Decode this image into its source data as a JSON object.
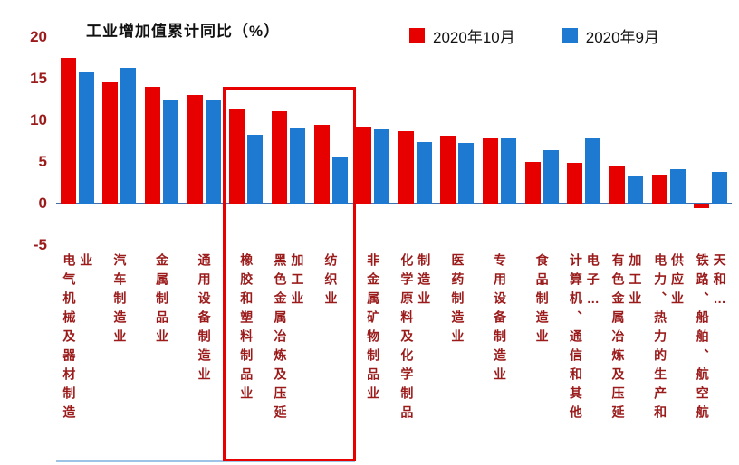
{
  "title": "工业增加值累计同比（%）",
  "legend": {
    "items": [
      {
        "label": "2020年10月",
        "color": "#e60000"
      },
      {
        "label": "2020年9月",
        "color": "#1e7ad0"
      }
    ]
  },
  "axis": {
    "tick_label_color": "#9b1b1b",
    "zero_line_color": "#3f6fae"
  },
  "chart_data": {
    "type": "bar",
    "title": "工业增加值累计同比（%）",
    "xlabel": "",
    "ylabel": "",
    "ylim": [
      -5,
      20
    ],
    "yticks": [
      20,
      15,
      10,
      5,
      0,
      -5
    ],
    "grid": false,
    "legend_position": "top-right",
    "categories": [
      "电气机械及器材制造业",
      "汽车制造业",
      "金属制品业",
      "通用设备制造业",
      "橡胶和塑料制品业",
      "黑色金属冶炼及压延加工业",
      "纺织业",
      "非金属矿物制品业",
      "化学原料及化学制品制造业",
      "医药制造业",
      "专用设备制造业",
      "食品制造业",
      "计算机、通信和其他电子…",
      "有色金属冶炼及压延加工业",
      "电力、热力的生产和供应业",
      "铁路、船舶、航空航天和…"
    ],
    "series": [
      {
        "name": "2020年10月",
        "color": "#e60000",
        "values": [
          17.5,
          14.6,
          14.0,
          13.0,
          11.4,
          11.1,
          9.5,
          9.2,
          8.7,
          8.1,
          7.9,
          5.0,
          4.9,
          4.6,
          3.5,
          -0.5
        ]
      },
      {
        "name": "2020年9月",
        "color": "#1e7ad0",
        "values": [
          15.8,
          16.3,
          12.5,
          12.4,
          8.3,
          9.0,
          5.5,
          8.9,
          7.4,
          7.3,
          7.9,
          6.4,
          7.9,
          3.4,
          4.1,
          3.8
        ]
      }
    ],
    "highlight_box": {
      "from_index": 4,
      "to_index": 6,
      "color": "#e60000"
    }
  }
}
